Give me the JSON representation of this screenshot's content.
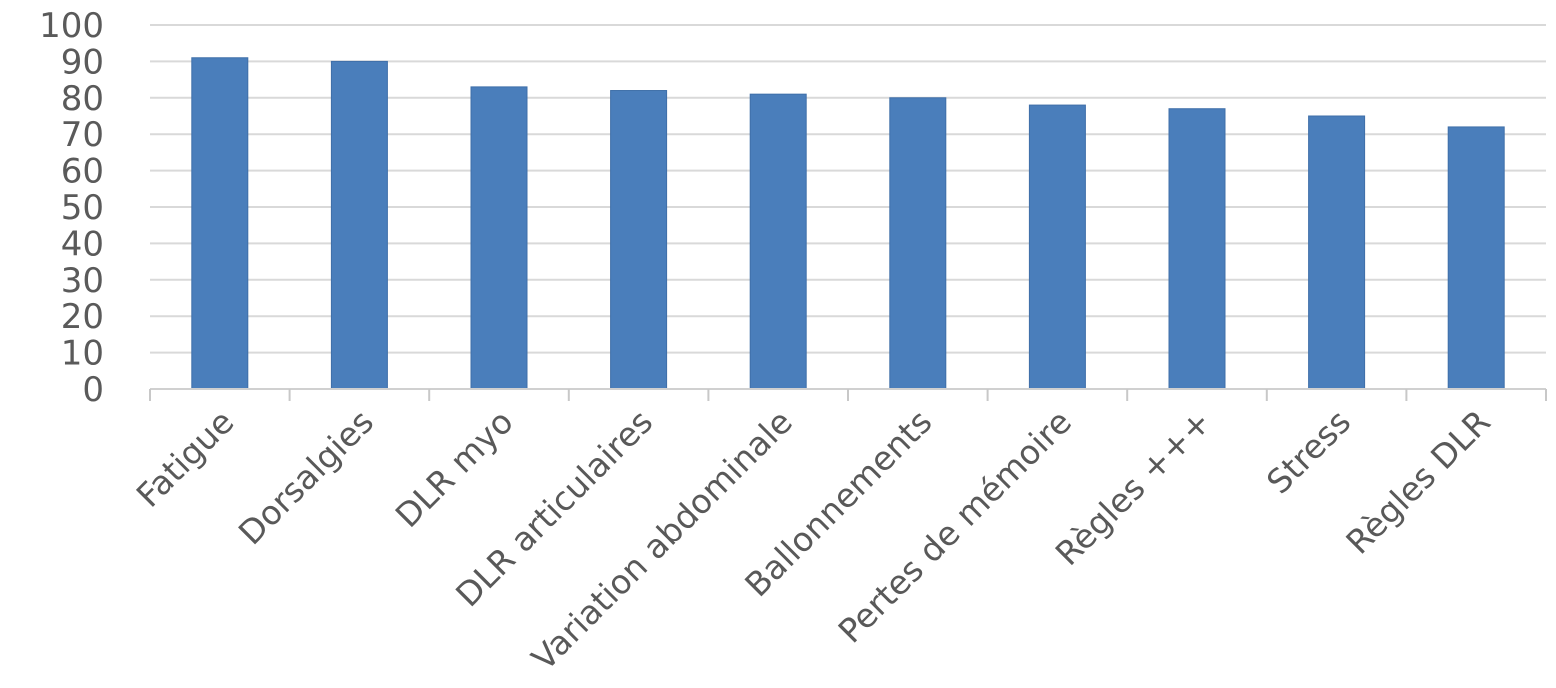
{
  "chart_data": {
    "type": "bar",
    "title": "",
    "xlabel": "",
    "ylabel": "",
    "categories": [
      "Fatigue",
      "Dorsalgies",
      "DLR myo",
      "DLR articulaires",
      "Variation abdominale",
      "Ballonnements",
      "Pertes de mémoire",
      "Règles +++",
      "Stress",
      "Règles DLR"
    ],
    "series": [
      {
        "values": [
          91,
          90,
          83,
          82,
          81,
          80,
          78,
          77,
          75,
          72
        ]
      }
    ],
    "ylim": [
      0,
      100
    ],
    "yticks": [
      0,
      10,
      20,
      30,
      40,
      50,
      60,
      70,
      80,
      90,
      100
    ],
    "grid": true,
    "legend": "none",
    "colors": {
      "bar": "#4a7ebb",
      "bar_edge": "#3f6fa9",
      "grid": "#d9d9d9",
      "text": "#595959"
    }
  }
}
